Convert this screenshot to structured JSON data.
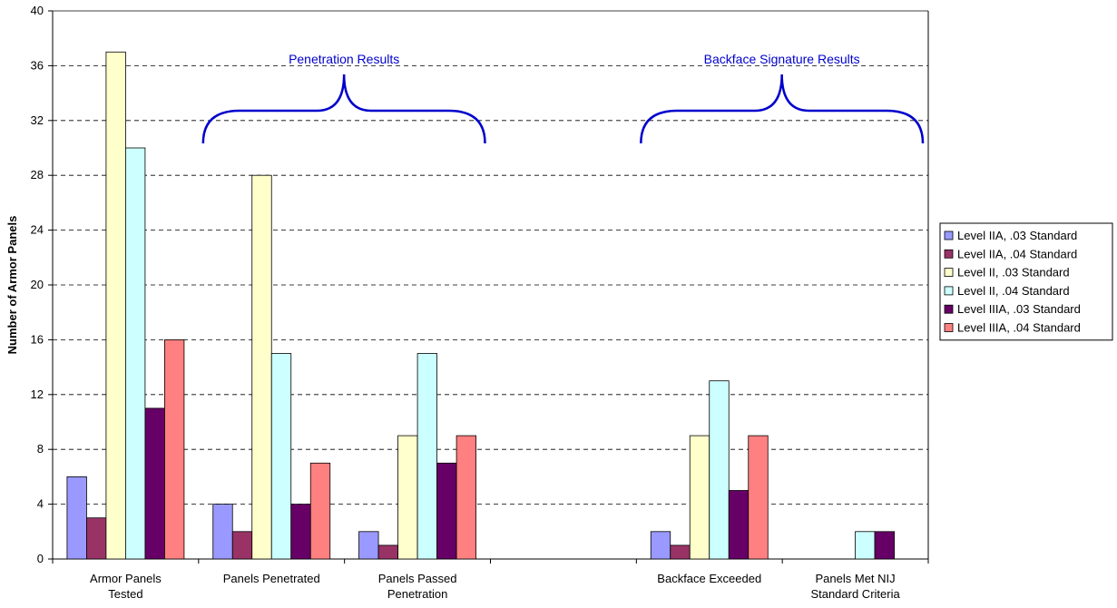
{
  "chart_data": {
    "type": "bar",
    "title": "",
    "xlabel": "",
    "ylabel": "Number of Armor Panels",
    "ylim": [
      0,
      40
    ],
    "yticks": [
      0,
      4,
      8,
      12,
      16,
      20,
      24,
      28,
      32,
      36,
      40
    ],
    "grid": "horizontal dashed",
    "legend_position": "right",
    "categories": [
      [
        "Armor Panels",
        "Tested"
      ],
      [
        "Panels Penetrated"
      ],
      [
        "Panels Passed",
        "Penetration"
      ],
      [
        ""
      ],
      [
        "Backface Exceeded"
      ],
      [
        "Panels Met NIJ",
        "Standard Criteria"
      ]
    ],
    "series": [
      {
        "name": "Level IIA, .03 Standard",
        "color": "#9999ff",
        "values": [
          6,
          4,
          2,
          0,
          2,
          0
        ]
      },
      {
        "name": "Level IIA, .04 Standard",
        "color": "#993366",
        "values": [
          3,
          2,
          1,
          0,
          1,
          0
        ]
      },
      {
        "name": "Level II, .03 Standard",
        "color": "#ffffcc",
        "values": [
          37,
          28,
          9,
          0,
          9,
          0
        ]
      },
      {
        "name": "Level II, .04 Standard",
        "color": "#ccffff",
        "values": [
          30,
          15,
          15,
          0,
          13,
          2
        ]
      },
      {
        "name": "Level IIIA, .03 Standard",
        "color": "#660066",
        "values": [
          11,
          4,
          7,
          0,
          5,
          2
        ]
      },
      {
        "name": "Level IIIA, .04 Standard",
        "color": "#ff8080",
        "values": [
          16,
          7,
          9,
          0,
          9,
          0
        ]
      }
    ],
    "annotations": [
      {
        "text": "Penetration Results",
        "spans_categories": [
          1,
          2
        ]
      },
      {
        "text": "Backface Signature Results",
        "spans_categories": [
          4,
          5
        ]
      }
    ]
  }
}
